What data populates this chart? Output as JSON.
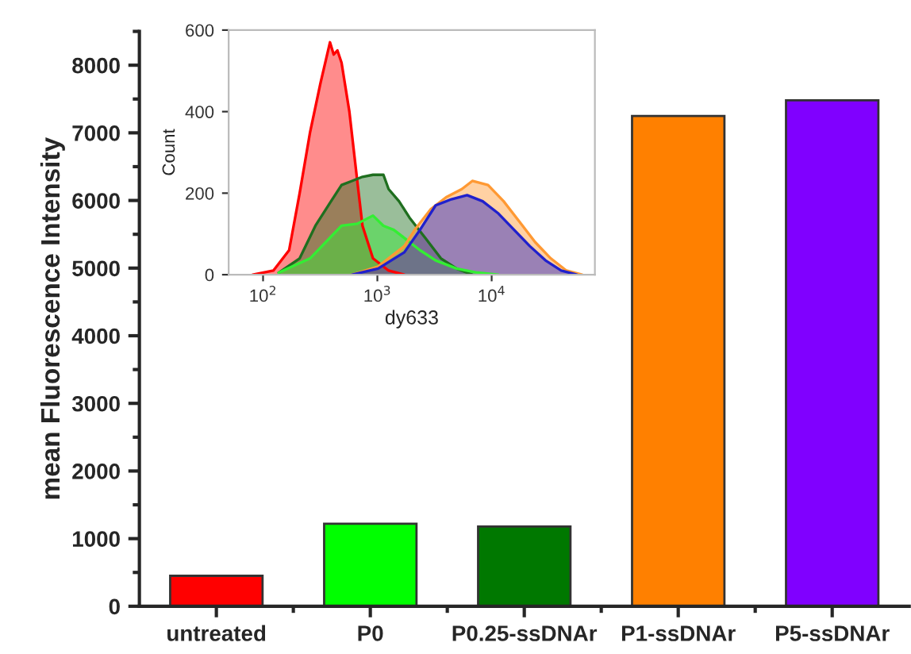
{
  "chart_data": [
    {
      "type": "bar",
      "ylabel": "mean Fluorescence Intensity",
      "categories": [
        "untreated",
        "P0",
        "P0.25-ssDNAr",
        "P1-ssDNAr",
        "P5-ssDNAr"
      ],
      "values": [
        450,
        1220,
        1180,
        7250,
        7480
      ],
      "colors": [
        "#ff0000",
        "#00ff00",
        "#007800",
        "#ff8000",
        "#8000ff"
      ],
      "ylim": [
        0,
        8500
      ],
      "yticks": [
        0,
        1000,
        2000,
        3000,
        4000,
        5000,
        6000,
        7000,
        8000
      ],
      "grid": false
    },
    {
      "type": "area",
      "xlabel": "dy633",
      "ylabel": "Count",
      "log": "x",
      "grid": false,
      "xlim": [
        50,
        80000
      ],
      "xticks": [
        {
          "value": 100,
          "label": "10$^{2}$"
        },
        {
          "value": 1000,
          "label": "10$^{3}$"
        },
        {
          "value": 10000,
          "label": "10$^{4}$"
        }
      ],
      "ylim": [
        0,
        600
      ],
      "yticks": [
        0,
        200,
        400,
        600
      ],
      "series": [
        {
          "color": "#ff0000",
          "x": [
            81,
            123,
            169,
            209,
            258,
            318,
            385,
            415,
            447,
            486,
            569,
            667,
            741,
            915,
            1254,
            1722
          ],
          "values": [
            0,
            10,
            60,
            200,
            350,
            470,
            570,
            540,
            550,
            520,
            400,
            230,
            120,
            40,
            10,
            0
          ]
        },
        {
          "color": "#1f6f1f",
          "x": [
            137,
            209,
            287,
            393,
            486,
            600,
            741,
            915,
            1130,
            1254,
            1548,
            1910,
            2624,
            3597,
            4933,
            6776
          ],
          "values": [
            5,
            40,
            120,
            180,
            220,
            230,
            240,
            245,
            245,
            210,
            180,
            140,
            90,
            40,
            15,
            0
          ]
        },
        {
          "color": "#33ee33",
          "x": [
            137,
            258,
            354,
            486,
            667,
            915,
            1130,
            1393,
            1722,
            2360,
            3236,
            4933,
            7516,
            11460
          ],
          "values": [
            5,
            40,
            80,
            120,
            125,
            145,
            120,
            110,
            90,
            60,
            35,
            15,
            5,
            0
          ]
        },
        {
          "color": "#ff9933",
          "x": [
            600,
            1016,
            1722,
            2122,
            2917,
            3999,
            5483,
            6776,
            9290,
            12740,
            17490,
            23990,
            32890,
            45110,
            61940
          ],
          "values": [
            0,
            20,
            70,
            110,
            160,
            190,
            210,
            230,
            220,
            180,
            130,
            80,
            40,
            10,
            0
          ]
        },
        {
          "color": "#2020cc",
          "x": [
            600,
            1016,
            1722,
            2360,
            3236,
            4446,
            6095,
            8356,
            11460,
            15730,
            21580,
            29580,
            40610,
            55710
          ],
          "values": [
            0,
            15,
            55,
            110,
            170,
            185,
            195,
            180,
            150,
            110,
            70,
            35,
            10,
            0
          ]
        }
      ]
    }
  ]
}
